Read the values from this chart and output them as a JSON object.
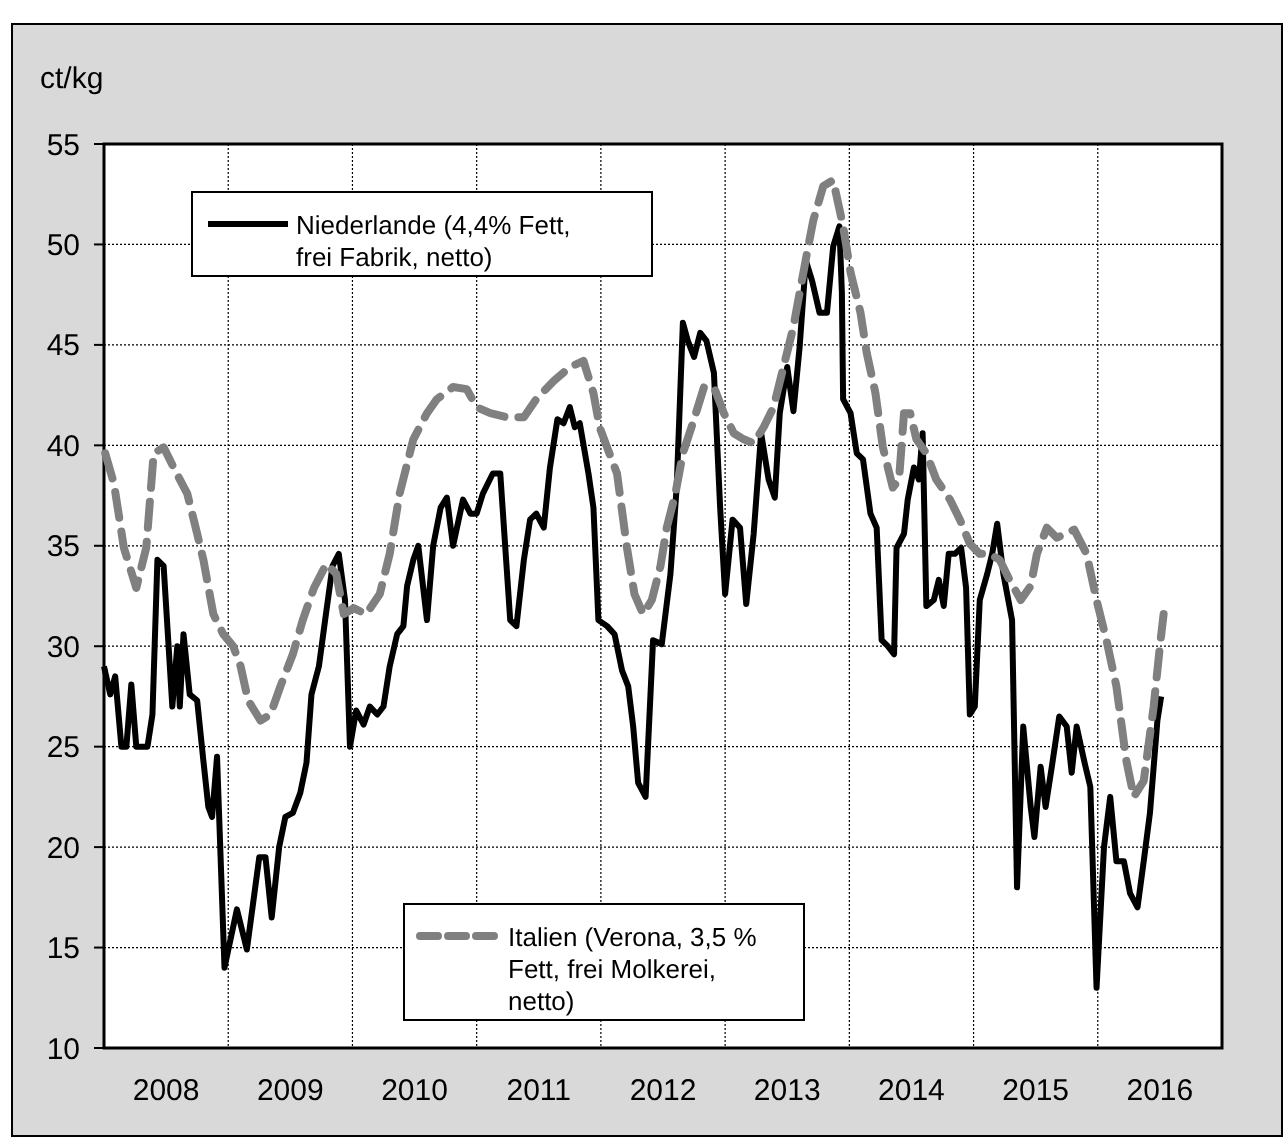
{
  "chart_data": {
    "type": "line",
    "ylabel": "ct/kg",
    "xlim": [
      2008,
      2017
    ],
    "ylim": [
      10,
      55
    ],
    "yticks": [
      10,
      15,
      20,
      25,
      30,
      35,
      40,
      45,
      50,
      55
    ],
    "xticks": [
      {
        "value": 2008.5,
        "label": "2008"
      },
      {
        "value": 2009,
        "label": null
      },
      {
        "value": 2009.5,
        "label": "2009"
      },
      {
        "value": 2010,
        "label": null
      },
      {
        "value": 2010.5,
        "label": "2010"
      },
      {
        "value": 2011,
        "label": null
      },
      {
        "value": 2011.5,
        "label": "2011"
      },
      {
        "value": 2012,
        "label": null
      },
      {
        "value": 2012.5,
        "label": "2012"
      },
      {
        "value": 2013,
        "label": null
      },
      {
        "value": 2013.5,
        "label": "2013"
      },
      {
        "value": 2014,
        "label": null
      },
      {
        "value": 2014.5,
        "label": "2014"
      },
      {
        "value": 2015,
        "label": null
      },
      {
        "value": 2015.5,
        "label": "2015"
      },
      {
        "value": 2016,
        "label": null
      },
      {
        "value": 2016.5,
        "label": "2016"
      }
    ],
    "grid": true,
    "legend": "left",
    "series": [
      {
        "name": "Niederlande (4,4% Fett, frei Fabrik, netto)",
        "color": "#000000",
        "line_style": "solid",
        "x": [
          2008.0,
          2008.05,
          2008.09,
          2008.14,
          2008.18,
          2008.22,
          2008.26,
          2008.35,
          2008.39,
          2008.43,
          2008.48,
          2008.55,
          2008.59,
          2008.61,
          2008.64,
          2008.69,
          2008.75,
          2008.8,
          2008.84,
          2008.87,
          2008.91,
          2008.97,
          2009.07,
          2009.15,
          2009.25,
          2009.3,
          2009.35,
          2009.41,
          2009.46,
          2009.52,
          2009.58,
          2009.63,
          2009.67,
          2009.73,
          2009.78,
          2009.84,
          2009.89,
          2009.94,
          2009.98,
          2010.03,
          2010.09,
          2010.14,
          2010.2,
          2010.25,
          2010.3,
          2010.36,
          2010.41,
          2010.44,
          2010.49,
          2010.53,
          2010.6,
          2010.65,
          2010.71,
          2010.76,
          2010.81,
          2010.89,
          2010.95,
          2011.0,
          2011.05,
          2011.13,
          2011.19,
          2011.27,
          2011.32,
          2011.38,
          2011.43,
          2011.48,
          2011.54,
          2011.59,
          2011.65,
          2011.7,
          2011.75,
          2011.79,
          2011.83,
          2011.9,
          2011.94,
          2011.98,
          2012.05,
          2012.11,
          2012.17,
          2012.22,
          2012.26,
          2012.3,
          2012.36,
          2012.42,
          2012.49,
          2012.56,
          2012.61,
          2012.66,
          2012.7,
          2012.75,
          2012.8,
          2012.85,
          2012.91,
          2012.96,
          2013.0,
          2013.06,
          2013.12,
          2013.17,
          2013.23,
          2013.29,
          2013.35,
          2013.4,
          2013.44,
          2013.5,
          2013.55,
          2013.6,
          2013.65,
          2013.7,
          2013.76,
          2013.82,
          2013.87,
          2013.92,
          2013.94,
          2013.95,
          2014.01,
          2014.06,
          2014.11,
          2014.17,
          2014.22,
          2014.26,
          2014.31,
          2014.36,
          2014.38,
          2014.44,
          2014.47,
          2014.52,
          2014.56,
          2014.59,
          2014.62,
          2014.68,
          2014.72,
          2014.76,
          2014.8,
          2014.85,
          2014.9,
          2014.94,
          2014.97,
          2015.01,
          2015.05,
          2015.11,
          2015.15,
          2015.19,
          2015.24,
          2015.31,
          2015.35,
          2015.4,
          2015.46,
          2015.49,
          2015.54,
          2015.58,
          2015.63,
          2015.69,
          2015.75,
          2015.79,
          2015.83,
          2015.89,
          2015.94,
          2015.99,
          2016.05,
          2016.1,
          2016.15,
          2016.21,
          2016.26,
          2016.32,
          2016.37,
          2016.42,
          2016.48,
          2016.51
        ],
        "values": [
          29.0,
          27.6,
          28.5,
          25.0,
          25.0,
          28.1,
          25.0,
          25.0,
          26.6,
          34.3,
          34.0,
          27.0,
          30.0,
          27.0,
          30.6,
          27.6,
          27.3,
          24.3,
          22.0,
          21.5,
          24.5,
          14.0,
          16.9,
          14.9,
          19.5,
          19.5,
          16.5,
          20.0,
          21.5,
          21.7,
          22.7,
          24.2,
          27.6,
          29.0,
          31.3,
          34.0,
          34.6,
          32.3,
          25.0,
          26.8,
          26.1,
          27.0,
          26.6,
          27.0,
          29.0,
          30.6,
          31.0,
          33.0,
          34.3,
          35.0,
          31.3,
          35.0,
          36.9,
          37.4,
          35.0,
          37.3,
          36.6,
          36.6,
          37.6,
          38.6,
          38.6,
          31.3,
          31.0,
          34.3,
          36.3,
          36.6,
          35.9,
          38.9,
          41.3,
          41.1,
          41.9,
          40.9,
          41.1,
          38.6,
          36.9,
          31.3,
          31.0,
          30.6,
          28.8,
          28.0,
          26.0,
          23.2,
          22.5,
          30.3,
          30.1,
          33.6,
          37.9,
          46.1,
          45.2,
          44.4,
          45.6,
          45.2,
          43.6,
          36.9,
          32.6,
          36.3,
          35.9,
          32.1,
          35.6,
          40.6,
          38.3,
          37.4,
          41.6,
          43.9,
          41.7,
          44.9,
          49.2,
          48.2,
          46.6,
          46.6,
          49.9,
          50.9,
          47.6,
          42.3,
          41.6,
          39.6,
          39.3,
          36.6,
          35.9,
          30.3,
          30.0,
          29.6,
          34.9,
          35.6,
          37.3,
          38.9,
          38.3,
          40.6,
          32.0,
          32.3,
          33.3,
          32.0,
          34.6,
          34.6,
          34.9,
          32.9,
          26.6,
          27.0,
          32.3,
          33.6,
          34.6,
          36.1,
          33.6,
          31.3,
          18.0,
          26.0,
          22.0,
          20.5,
          24.0,
          22.0,
          24.0,
          26.5,
          26.0,
          23.7,
          26.0,
          24.3,
          23.0,
          13.0,
          20.0,
          22.5,
          19.3,
          19.3,
          17.7,
          17.0,
          19.3,
          21.7,
          26.3,
          27.5
        ]
      },
      {
        "name": "Italien (Verona, 3,5 % Fett, frei Molkerei, netto)",
        "color": "#808080",
        "line_style": "dashed",
        "x": [
          2008.01,
          2008.08,
          2008.16,
          2008.26,
          2008.34,
          2008.4,
          2008.48,
          2008.56,
          2008.67,
          2008.75,
          2008.8,
          2008.88,
          2008.96,
          2009.04,
          2009.1,
          2009.16,
          2009.26,
          2009.34,
          2009.42,
          2009.52,
          2009.6,
          2009.69,
          2009.79,
          2009.87,
          2009.93,
          2010.01,
          2010.11,
          2010.22,
          2010.3,
          2010.38,
          2010.49,
          2010.6,
          2010.68,
          2010.81,
          2010.92,
          2011.0,
          2011.11,
          2011.24,
          2011.38,
          2011.48,
          2011.62,
          2011.75,
          2011.86,
          2011.94,
          2011.99,
          2012.05,
          2012.13,
          2012.21,
          2012.27,
          2012.34,
          2012.41,
          2012.48,
          2012.53,
          2012.6,
          2012.66,
          2012.75,
          2012.83,
          2012.91,
          2012.99,
          2013.07,
          2013.15,
          2013.23,
          2013.31,
          2013.39,
          2013.47,
          2013.55,
          2013.6,
          2013.66,
          2013.71,
          2013.79,
          2013.87,
          2013.95,
          2014.01,
          2014.09,
          2014.14,
          2014.21,
          2014.27,
          2014.35,
          2014.4,
          2014.44,
          2014.49,
          2014.54,
          2014.62,
          2014.7,
          2014.81,
          2014.89,
          2014.97,
          2015.05,
          2015.13,
          2015.21,
          2015.29,
          2015.38,
          2015.46,
          2015.51,
          2015.59,
          2015.67,
          2015.81,
          2015.91,
          2015.99,
          2016.07,
          2016.15,
          2016.23,
          2016.29,
          2016.37,
          2016.45,
          2016.5,
          2016.53
        ],
        "values": [
          39.6,
          38.1,
          34.9,
          32.9,
          34.9,
          39.6,
          39.9,
          38.9,
          37.6,
          35.6,
          34.3,
          31.6,
          30.6,
          30.0,
          29.0,
          27.3,
          26.3,
          26.6,
          28.0,
          29.6,
          31.3,
          32.9,
          34.1,
          33.6,
          31.6,
          31.9,
          31.6,
          32.6,
          34.6,
          37.6,
          40.3,
          41.6,
          42.3,
          42.9,
          42.8,
          41.9,
          41.6,
          41.4,
          41.4,
          42.3,
          43.2,
          43.9,
          44.2,
          42.6,
          40.9,
          39.9,
          38.6,
          34.9,
          32.6,
          31.6,
          32.3,
          34.0,
          35.9,
          37.6,
          39.6,
          41.3,
          42.9,
          42.9,
          41.6,
          40.6,
          40.3,
          40.1,
          40.9,
          41.9,
          43.9,
          45.9,
          47.6,
          49.6,
          51.2,
          52.9,
          53.2,
          50.9,
          48.6,
          46.6,
          44.6,
          42.6,
          39.9,
          37.9,
          38.3,
          41.6,
          41.6,
          40.3,
          39.6,
          38.3,
          37.3,
          36.3,
          35.1,
          34.6,
          34.6,
          34.3,
          33.3,
          32.3,
          33.0,
          34.6,
          35.9,
          35.4,
          35.8,
          34.6,
          32.3,
          30.3,
          28.0,
          24.3,
          22.5,
          23.3,
          27.0,
          30.0,
          31.6
        ]
      }
    ]
  }
}
